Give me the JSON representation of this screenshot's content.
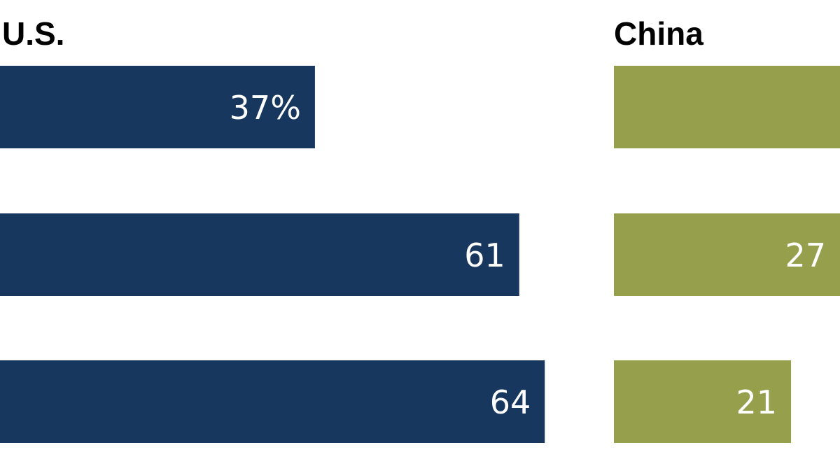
{
  "chart_data": [
    {
      "type": "bar",
      "orientation": "horizontal",
      "title": "U.S.",
      "color": "#17375e",
      "values": [
        37,
        61,
        64
      ],
      "labels": [
        "37%",
        "61",
        "64"
      ],
      "xlim": [
        0,
        100
      ]
    },
    {
      "type": "bar",
      "orientation": "horizontal",
      "title": "China",
      "color": "#969f4c",
      "values": [
        null,
        27,
        21
      ],
      "labels": [
        "",
        "27",
        "21"
      ],
      "xlim": [
        0,
        100
      ]
    }
  ]
}
